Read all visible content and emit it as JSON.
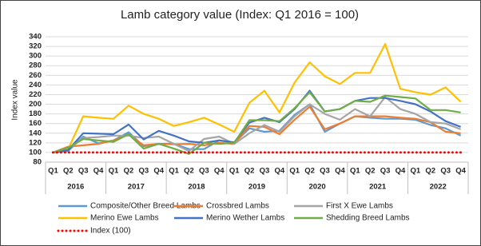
{
  "chart_data": {
    "type": "line",
    "title": "Lamb category value (Index: Q1 2016 = 100)",
    "y_label": "Index value",
    "categories": [
      "Q1",
      "Q2",
      "Q3",
      "Q4",
      "Q1",
      "Q2",
      "Q3",
      "Q4",
      "Q1",
      "Q2",
      "Q3",
      "Q4",
      "Q1",
      "Q2",
      "Q3",
      "Q4",
      "Q1",
      "Q2",
      "Q3",
      "Q4",
      "Q1",
      "Q2",
      "Q3",
      "Q4",
      "Q1",
      "Q2",
      "Q3",
      "Q4"
    ],
    "years": [
      "2016",
      "2017",
      "2018",
      "2019",
      "2020",
      "2021",
      "2022"
    ],
    "ylim": [
      80,
      340
    ],
    "yticks": [
      80,
      100,
      120,
      140,
      160,
      180,
      200,
      220,
      240,
      260,
      280,
      300,
      320,
      340
    ],
    "grid": true,
    "series": [
      {
        "name": "Composite/Other Breed Lambs",
        "color": "#5b9bd5",
        "values": [
          100,
          103,
          133,
          119,
          125,
          142,
          113,
          118,
          118,
          107,
          107,
          125,
          120,
          150,
          143,
          145,
          178,
          200,
          143,
          160,
          175,
          172,
          170,
          170,
          168,
          157,
          150,
          135
        ]
      },
      {
        "name": "Crossbred Lambs",
        "color": "#ed7d31",
        "values": [
          100,
          112,
          115,
          118,
          125,
          137,
          115,
          118,
          117,
          118,
          115,
          120,
          118,
          155,
          153,
          138,
          168,
          195,
          148,
          160,
          175,
          175,
          175,
          172,
          170,
          163,
          143,
          140
        ]
      },
      {
        "name": "First X Ewe Lambs",
        "color": "#a5a5a5",
        "values": [
          100,
          107,
          130,
          132,
          135,
          135,
          130,
          133,
          118,
          103,
          128,
          133,
          118,
          140,
          157,
          143,
          175,
          200,
          180,
          168,
          190,
          175,
          215,
          190,
          180,
          163,
          160,
          148
        ]
      },
      {
        "name": "Merino Ewe Lambs",
        "color": "#ffc000",
        "values": [
          100,
          107,
          175,
          172,
          170,
          197,
          180,
          170,
          155,
          163,
          172,
          158,
          143,
          203,
          228,
          183,
          245,
          287,
          258,
          242,
          265,
          265,
          325,
          232,
          225,
          220,
          235,
          205
        ]
      },
      {
        "name": "Merino Wether Lambs",
        "color": "#4472c4",
        "values": [
          100,
          105,
          140,
          139,
          138,
          158,
          127,
          145,
          135,
          123,
          120,
          125,
          121,
          162,
          172,
          163,
          190,
          228,
          185,
          190,
          207,
          213,
          213,
          207,
          200,
          185,
          165,
          153
        ]
      },
      {
        "name": "Shedding Breed Lambs",
        "color": "#70ad47",
        "values": [
          100,
          110,
          128,
          125,
          122,
          138,
          108,
          118,
          108,
          97,
          120,
          118,
          120,
          167,
          167,
          165,
          192,
          225,
          185,
          190,
          207,
          205,
          218,
          215,
          212,
          188,
          188,
          183
        ]
      },
      {
        "name": "Index (100)",
        "color": "#ff0000",
        "style": "dotted",
        "values": [
          100,
          100,
          100,
          100,
          100,
          100,
          100,
          100,
          100,
          100,
          100,
          100,
          100,
          100,
          100,
          100,
          100,
          100,
          100,
          100,
          100,
          100,
          100,
          100,
          100,
          100,
          100,
          100
        ]
      }
    ]
  }
}
